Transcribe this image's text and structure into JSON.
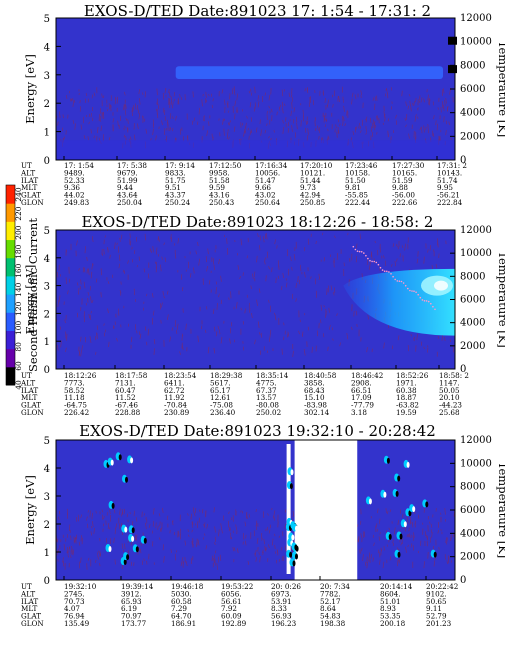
{
  "figure": {
    "colorbar": {
      "label": "Second Harmonic Current",
      "ticks": [
        40,
        60,
        80,
        100,
        120,
        140,
        160,
        180,
        200,
        220,
        240
      ],
      "range": [
        40,
        250
      ],
      "colors": [
        "#000000",
        "#6600aa",
        "#3b1fd6",
        "#2a5cff",
        "#1ea0ff",
        "#00d0e6",
        "#00c070",
        "#66dd00",
        "#ffee00",
        "#ff9900",
        "#ff2200"
      ]
    },
    "colors": {
      "background": "#3333cc",
      "speckle": "#7a2a6a",
      "band": "#3366ff",
      "cyan": "#00ccff",
      "white": "#ffffff",
      "black": "#000000"
    }
  },
  "chart_data": [
    {
      "type": "heatmap",
      "title": "EXOS-D/TED   Date:891023  17: 1:54 - 17:31: 2",
      "ylabel": "Energy [eV]",
      "y2label": "Temperature [K]",
      "ylim": [
        0,
        5
      ],
      "y2lim": [
        0,
        12000
      ],
      "y_ticks": [
        "0",
        "1",
        "2",
        "3",
        "4",
        "5"
      ],
      "y2_ticks": [
        "0",
        "2000",
        "4000",
        "6000",
        "8000",
        "10000",
        "12000"
      ],
      "x_rows": [
        "UT",
        "ALT",
        "ILAT",
        "MLT",
        "GLAT",
        "GLON"
      ],
      "x_columns": [
        [
          "17: 1:54",
          "9489.",
          "52.33",
          "9.36",
          "44.02",
          "249.83"
        ],
        [
          "17: 5:38",
          "9679.",
          "51.99",
          "9.44",
          "43.64",
          "250.04"
        ],
        [
          "17: 9:14",
          "9833.",
          "51.75",
          "9.51",
          "43.37",
          "250.24"
        ],
        [
          "17:12:50",
          "9958.",
          "51.58",
          "9.59",
          "43.16",
          "250.43"
        ],
        [
          "17:16:34",
          "10056.",
          "51.47",
          "9.66",
          "43.02",
          "250.64"
        ],
        [
          "17:20:10",
          "10121.",
          "51.44",
          "9.73",
          "42.94",
          "250.85"
        ],
        [
          "17:23:46",
          "10158.",
          "51.50",
          "9.81",
          "-55.85",
          "222.44"
        ],
        [
          "17:27:30",
          "10165.",
          "51.59",
          "9.88",
          "-56.00",
          "222.66"
        ],
        [
          "17:31: 2",
          "10143.",
          "51.74",
          "9.95",
          "-56.21",
          "222.84"
        ]
      ],
      "features": {
        "band_energy_ev": [
          2.85,
          3.3
        ],
        "band_time_fraction": [
          0.3,
          0.97
        ],
        "cool_energy_ev": [
          0,
          0.7
        ],
        "spots": [
          {
            "time_fraction": 0.995,
            "energy_ev": 4.2,
            "color": "black"
          },
          {
            "time_fraction": 0.995,
            "energy_ev": 3.2,
            "color": "black"
          }
        ]
      }
    },
    {
      "type": "heatmap",
      "title": "EXOS-D/TED   Date:891023  18:12:26 - 18:58: 2",
      "ylabel": "Energy [eV]",
      "y2label": "Temperature [K]",
      "ylim": [
        0,
        5
      ],
      "y2lim": [
        0,
        12000
      ],
      "y_ticks": [
        "0",
        "1",
        "2",
        "3",
        "4",
        "5"
      ],
      "y2_ticks": [
        "0",
        "2000",
        "4000",
        "6000",
        "8000",
        "10000",
        "12000"
      ],
      "x_rows": [
        "UT",
        "ALT",
        "ILAT",
        "MLT",
        "GLAT",
        "GLON"
      ],
      "x_columns": [
        [
          "18:12:26",
          "7773.",
          "58.52",
          "11.18",
          "-64.75",
          "226.42"
        ],
        [
          "18:17:58",
          "7131.",
          "60.47",
          "11.52",
          "-67.46",
          "228.88"
        ],
        [
          "18:23:54",
          "6411.",
          "62.72",
          "11.92",
          "-70.84",
          "230.89"
        ],
        [
          "18:29:38",
          "5617.",
          "65.17",
          "12.61",
          "-75.08",
          "236.40"
        ],
        [
          "18:35:14",
          "4775.",
          "67.37",
          "13.57",
          "-80.08",
          "250.02"
        ],
        [
          "18:40:58",
          "3858.",
          "68.43",
          "15.10",
          "-83.98",
          "302.14"
        ],
        [
          "18:46:42",
          "2908.",
          "66.51",
          "17.09",
          "-77.79",
          "3.18"
        ],
        [
          "18:52:26",
          "1971.",
          "60.38",
          "18.87",
          "-63.82",
          "19.59"
        ],
        [
          "18:58: 2",
          "1147.",
          "50.05",
          "20.10",
          "-44.23",
          "25.68"
        ]
      ],
      "features": {
        "cyan_region_time_fraction": [
          0.72,
          1.0
        ],
        "cyan_region_energy_ev": [
          1.2,
          3.6
        ],
        "peak_energy_ev": 3.0
      }
    },
    {
      "type": "heatmap",
      "title": "EXOS-D/TED   Date:891023  19:32:10 - 20:28:42",
      "ylabel": "Energy [eV]",
      "y2label": "Temperature [K]",
      "ylim": [
        0,
        5
      ],
      "y2lim": [
        0,
        12000
      ],
      "y_ticks": [
        "0",
        "1",
        "2",
        "3",
        "4",
        "5"
      ],
      "y2_ticks": [
        "0",
        "2000",
        "4000",
        "6000",
        "8000",
        "10000",
        "12000"
      ],
      "x_rows": [
        "UT",
        "ALT",
        "ILAT",
        "MLT",
        "GLAT",
        "GLON"
      ],
      "x_columns": [
        [
          "19:32:10",
          "2745.",
          "70.73",
          "4.07",
          "76.94",
          "135.49"
        ],
        [
          "19:39:14",
          "3912.",
          "65.93",
          "6.19",
          "70.97",
          "173.77"
        ],
        [
          "19:46:18",
          "5030.",
          "60.58",
          "7.29",
          "64.70",
          "186.91"
        ],
        [
          "19:53:22",
          "6056.",
          "56.61",
          "7.92",
          "60.09",
          "192.89"
        ],
        [
          "20: 0:26",
          "6973.",
          "53.91",
          "8.33",
          "56.93",
          "196.23"
        ],
        [
          "20: 7:34",
          "7782.",
          "52.17",
          "8.64",
          "54.83",
          "198.38"
        ],
        [
          "20:14:14",
          "8604.",
          "51.01",
          "8.93",
          "53.35",
          "200.18"
        ],
        [
          "20:22:42",
          "9102.",
          "50.65",
          "9.11",
          "52.79",
          "201.23"
        ]
      ],
      "features": {
        "gap_time_fraction": [
          0.598,
          0.755
        ],
        "blobs_energy_ev": [
          0.6,
          3.2
        ]
      }
    }
  ]
}
